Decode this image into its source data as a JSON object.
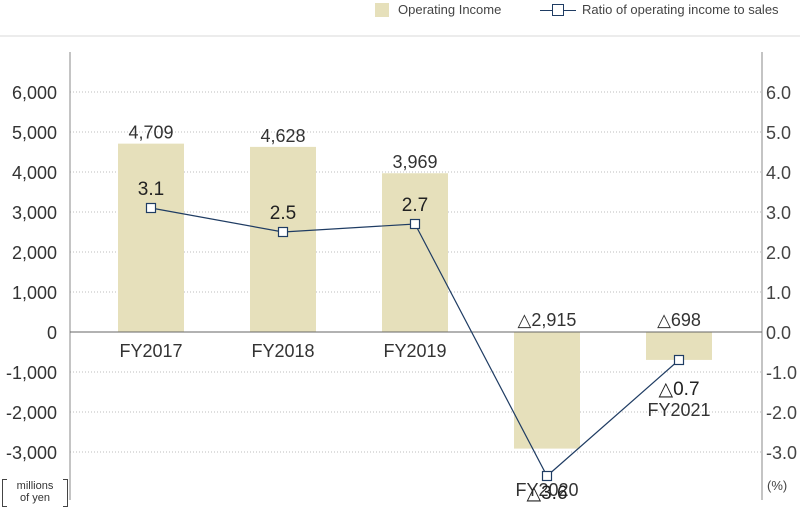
{
  "legend": {
    "operating_income": "Operating Income",
    "ratio": "Ratio of operating income to sales"
  },
  "units": {
    "left_line1": "millions",
    "left_line2": "of yen",
    "right": "(%)"
  },
  "colors": {
    "bar": "#e6e0bb",
    "line": "#1f3c63",
    "grid": "#bcbcbc",
    "axis": "#8a8a8a",
    "text": "#333333"
  },
  "chart_data": {
    "type": "bar",
    "categories": [
      "FY2017",
      "FY2018",
      "FY2019",
      "FY2020",
      "FY2021"
    ],
    "series": [
      {
        "name": "Operating Income",
        "type": "bar",
        "axis": "left",
        "values": [
          4709,
          4628,
          3969,
          -2915,
          -698
        ],
        "labels": [
          "4,709",
          "4,628",
          "3,969",
          "△2,915",
          "△698"
        ]
      },
      {
        "name": "Ratio of operating income to sales",
        "type": "line",
        "axis": "right",
        "values": [
          3.1,
          2.5,
          2.7,
          -3.6,
          -0.7
        ],
        "labels": [
          "3.1",
          "2.5",
          "2.7",
          "△3.6",
          "△0.7"
        ]
      }
    ],
    "left_axis": {
      "ylim": [
        -3000,
        6000
      ],
      "ticks": [
        6000,
        5000,
        4000,
        3000,
        2000,
        1000,
        0,
        -1000,
        -2000,
        -3000
      ],
      "tick_labels": [
        "6,000",
        "5,000",
        "4,000",
        "3,000",
        "2,000",
        "1,000",
        "0",
        "-1,000",
        "-2,000",
        "-3,000"
      ]
    },
    "right_axis": {
      "ylim": [
        -3.0,
        6.0
      ],
      "ticks": [
        6.0,
        5.0,
        4.0,
        3.0,
        2.0,
        1.0,
        0.0,
        -1.0,
        -2.0,
        -3.0
      ],
      "tick_labels": [
        "6.0",
        "5.0",
        "4.0",
        "3.0",
        "2.0",
        "1.0",
        "0.0",
        "-1.0",
        "-2.0",
        "-3.0"
      ]
    },
    "grid": true,
    "legend_position": "top-right"
  }
}
